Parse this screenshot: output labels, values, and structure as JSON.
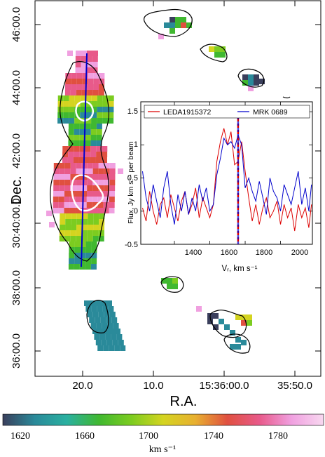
{
  "chart_data": [
    {
      "type": "heatmap",
      "title": "",
      "xlabel": "R.A.",
      "ylabel": "Dec.",
      "x_ticks": [
        "20.0",
        "10.0",
        "15:36:00.0",
        "35:50.0"
      ],
      "y_ticks": [
        "46:00.0",
        "44:00.0",
        "42:00.0",
        "30:40:00.0",
        "38:00.0",
        "36:00.0"
      ],
      "grid": false,
      "colorbar": {
        "label": "km s⁻¹",
        "min": 1600,
        "max": 1800,
        "ticks": [
          "1620",
          "1660",
          "1700",
          "1740",
          "1780"
        ],
        "colors": [
          "#3a3f5c",
          "#2a8a9a",
          "#2ab0a0",
          "#40b830",
          "#7ccc20",
          "#d4d420",
          "#e8b030",
          "#e05040",
          "#e85a8a",
          "#f0a0e0",
          "#f8d8f0"
        ]
      },
      "palette": {
        "v1620": "#3a3f5c",
        "v1650": "#2a8a9a",
        "v1680": "#40b830",
        "v1700": "#7ccc20",
        "v1720": "#d4d420",
        "v1740": "#e05040",
        "v1770": "#e85a8a",
        "v1795": "#f0a0e0",
        "slit_color": "#0000cc",
        "contour_color": "#000000",
        "inner_contour_color": "#ffffff"
      }
    },
    {
      "type": "line",
      "title": "",
      "xlabel": "Vᵣ,  km s⁻¹",
      "ylabel": "Flux, Jy km s⁻¹ per beam",
      "xlim": [
        1210,
        2180
      ],
      "ylim": [
        -0.5,
        1.65
      ],
      "x_ticks": [
        "1400",
        "1600",
        "1800",
        "2000"
      ],
      "y_ticks": [
        "-0.5",
        "0",
        "0.5",
        "1",
        "1.5"
      ],
      "legend": "top",
      "vline": 1760,
      "x": [
        1220,
        1240,
        1260,
        1280,
        1300,
        1320,
        1340,
        1360,
        1380,
        1400,
        1420,
        1440,
        1460,
        1480,
        1500,
        1520,
        1540,
        1560,
        1580,
        1600,
        1620,
        1640,
        1660,
        1680,
        1700,
        1720,
        1740,
        1760,
        1780,
        1800,
        1820,
        1840,
        1860,
        1880,
        1900,
        1920,
        1940,
        1960,
        1980,
        2000,
        2020,
        2040,
        2060,
        2080,
        2100,
        2120,
        2140,
        2160,
        2175
      ],
      "series": [
        {
          "name": "LEDA1915372",
          "color": "#dd0000",
          "values": [
            0.05,
            -0.15,
            0.3,
            0.0,
            -0.2,
            0.1,
            0.2,
            -0.1,
            0.25,
            0.05,
            -0.15,
            0.15,
            0.3,
            -0.05,
            0.1,
            0.35,
            -0.1,
            0.2,
            0.05,
            -0.1,
            0.1,
            0.75,
            1.05,
            1.25,
            1.0,
            1.2,
            0.7,
            0.75,
            1.05,
            0.6,
            0.2,
            -0.15,
            0.1,
            -0.2,
            0.05,
            0.2,
            -0.1,
            0.0,
            0.15,
            -0.2,
            0.1,
            -0.1,
            0.05,
            -0.3,
            0.1,
            -0.1,
            0.05,
            -0.25,
            0.1
          ]
        },
        {
          "name": "MRK 0689",
          "color": "#0000cc",
          "values": [
            0.6,
            0.2,
            0.0,
            0.4,
            0.15,
            -0.1,
            0.35,
            0.6,
            0.1,
            -0.2,
            0.25,
            0.0,
            0.3,
            -0.05,
            0.2,
            0.0,
            0.4,
            0.15,
            0.35,
            0.0,
            0.1,
            0.55,
            0.8,
            1.1,
            1.0,
            1.05,
            0.95,
            1.15,
            1.0,
            0.35,
            0.5,
            0.3,
            0.15,
            0.45,
            0.2,
            -0.05,
            0.5,
            0.3,
            0.2,
            0.0,
            0.4,
            0.25,
            0.1,
            0.35,
            0.6,
            0.1,
            0.35,
            0.0,
            0.4
          ]
        }
      ]
    }
  ]
}
